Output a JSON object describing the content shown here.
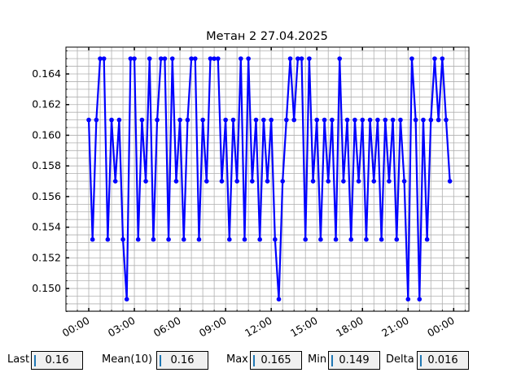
{
  "chart_data": {
    "type": "line",
    "title": "Метан 2 27.04.2025",
    "xlabel": "",
    "ylabel": "",
    "date": "2025-04-27",
    "xlim": [
      "2025-04-26 22:30",
      "2025-04-28 01:00"
    ],
    "ylim": [
      0.14852,
      0.16575
    ],
    "grid": true,
    "grid_minor": true,
    "series_color": "#0000ff",
    "marker": "circle",
    "x_ticks": [
      "00:00",
      "03:00",
      "06:00",
      "09:00",
      "12:00",
      "15:00",
      "18:00",
      "21:00",
      "00:00"
    ],
    "y_ticks": [
      "0.150",
      "0.152",
      "0.154",
      "0.156",
      "0.158",
      "0.160",
      "0.162",
      "0.164"
    ],
    "x": [
      "00:00",
      "00:15",
      "00:30",
      "00:45",
      "01:00",
      "01:15",
      "01:30",
      "01:45",
      "02:00",
      "02:15",
      "02:30",
      "02:45",
      "03:00",
      "03:15",
      "03:30",
      "03:45",
      "04:00",
      "04:15",
      "04:30",
      "04:45",
      "05:00",
      "05:15",
      "05:30",
      "05:45",
      "06:00",
      "06:15",
      "06:30",
      "06:45",
      "07:00",
      "07:15",
      "07:30",
      "07:45",
      "08:00",
      "08:15",
      "08:30",
      "08:45",
      "09:00",
      "09:15",
      "09:30",
      "09:45",
      "10:00",
      "10:15",
      "10:30",
      "10:45",
      "11:00",
      "11:15",
      "11:30",
      "11:45",
      "12:00",
      "12:15",
      "12:30",
      "12:45",
      "13:00",
      "13:15",
      "13:30",
      "13:45",
      "14:00",
      "14:15",
      "14:30",
      "14:45",
      "15:00",
      "15:15",
      "15:30",
      "15:45",
      "16:00",
      "16:15",
      "16:30",
      "16:45",
      "17:00",
      "17:15",
      "17:30",
      "17:45",
      "18:00",
      "18:15",
      "18:30",
      "18:45",
      "19:00",
      "19:15",
      "19:30",
      "19:45",
      "20:00",
      "20:15",
      "20:30",
      "20:45",
      "21:00",
      "21:15",
      "21:30",
      "21:45",
      "22:00",
      "22:15",
      "22:30",
      "22:45",
      "23:00",
      "23:15",
      "23:30",
      "23:45"
    ],
    "values": [
      0.161,
      0.1532,
      0.161,
      0.165,
      0.165,
      0.1532,
      0.161,
      0.157,
      0.161,
      0.1532,
      0.1493,
      0.165,
      0.165,
      0.1532,
      0.161,
      0.157,
      0.165,
      0.1532,
      0.161,
      0.165,
      0.165,
      0.1532,
      0.165,
      0.157,
      0.161,
      0.1532,
      0.161,
      0.165,
      0.165,
      0.1532,
      0.161,
      0.157,
      0.165,
      0.165,
      0.165,
      0.157,
      0.161,
      0.1532,
      0.161,
      0.157,
      0.165,
      0.1532,
      0.165,
      0.157,
      0.161,
      0.1532,
      0.161,
      0.157,
      0.161,
      0.1532,
      0.1493,
      0.157,
      0.161,
      0.165,
      0.161,
      0.165,
      0.165,
      0.1532,
      0.165,
      0.157,
      0.161,
      0.1532,
      0.161,
      0.157,
      0.161,
      0.1532,
      0.165,
      0.157,
      0.161,
      0.1532,
      0.161,
      0.157,
      0.161,
      0.1532,
      0.161,
      0.157,
      0.161,
      0.1532,
      0.161,
      0.157,
      0.161,
      0.1532,
      0.161,
      0.157,
      0.1493,
      0.165,
      0.161,
      0.1493,
      0.161,
      0.1532,
      0.161,
      0.165,
      0.161,
      0.165,
      0.161,
      0.157
    ]
  },
  "stats": {
    "last": {
      "label": "Last",
      "value": "0.16"
    },
    "mean": {
      "label": "Mean(10)",
      "value": "0.16"
    },
    "max": {
      "label": "Max",
      "value": "0.165"
    },
    "min": {
      "label": "Min",
      "value": "0.149"
    },
    "delta": {
      "label": "Delta",
      "value": "0.016"
    }
  }
}
